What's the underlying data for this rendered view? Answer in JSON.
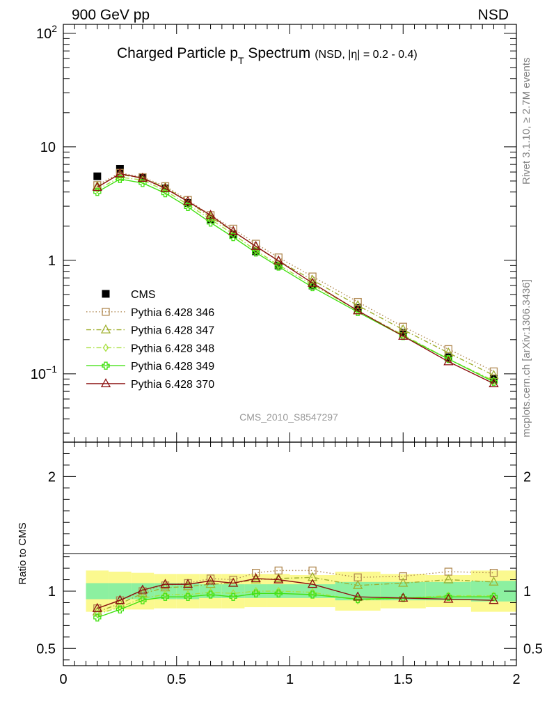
{
  "header": {
    "left": "900 GeV pp",
    "right": "NSD"
  },
  "side": {
    "top": "Rivet 3.1.10, ≥ 2.7M events",
    "bottom": "mcplots.cern.ch [arXiv:1306.3436]"
  },
  "analysis_id": "CMS_2010_S8547297",
  "colors": {
    "cms": "#000000",
    "p346": "#b08850",
    "p347": "#a0b030",
    "p348": "#a8e040",
    "p349": "#40e010",
    "p370": "#8b1010",
    "band_yellow": "#fbf98f",
    "band_green": "#8cf0a0"
  },
  "chart_data": [
    {
      "type": "line",
      "title_main": "Charged Particle p",
      "title_sub": "T",
      "title_main2": " Spectrum",
      "title_small": "(NSD, |η| = 0.2 - 0.4)",
      "yscale": "log",
      "xlim": [
        0,
        2
      ],
      "ylim": [
        0.025,
        120
      ],
      "y_ticks": [
        {
          "v": 0.1,
          "base": "10",
          "exp": "−1"
        },
        {
          "v": 1,
          "base": "1",
          "exp": ""
        },
        {
          "v": 10,
          "base": "10",
          "exp": ""
        },
        {
          "v": 100,
          "base": "10",
          "exp": "2"
        }
      ],
      "legend_position": "lower-left",
      "x": [
        0.15,
        0.25,
        0.35,
        0.45,
        0.55,
        0.65,
        0.75,
        0.85,
        0.95,
        1.1,
        1.3,
        1.5,
        1.7,
        1.9
      ],
      "series": [
        {
          "name": "CMS",
          "key": "cms",
          "marker": "square-filled",
          "style": "none",
          "values": [
            5.5,
            6.4,
            5.4,
            4.3,
            3.2,
            2.3,
            1.7,
            1.2,
            0.9,
            0.6,
            0.38,
            0.23,
            0.14,
            0.09
          ]
        },
        {
          "name": "Pythia 6.428 346",
          "key": "p346",
          "marker": "square-open",
          "style": "dotted",
          "values": [
            4.6,
            5.9,
            5.4,
            4.5,
            3.4,
            2.5,
            1.9,
            1.4,
            1.06,
            0.72,
            0.43,
            0.26,
            0.165,
            0.105
          ]
        },
        {
          "name": "Pythia 6.428 347",
          "key": "p347",
          "marker": "triangle-open",
          "style": "dashdot",
          "values": [
            4.5,
            5.7,
            5.3,
            4.4,
            3.3,
            2.4,
            1.8,
            1.32,
            0.99,
            0.67,
            0.4,
            0.245,
            0.153,
            0.097
          ]
        },
        {
          "name": "Pythia 6.428 348",
          "key": "p348",
          "marker": "diamond-open",
          "style": "dashdot",
          "values": [
            4.2,
            5.4,
            5.1,
            4.1,
            3.1,
            2.3,
            1.7,
            1.22,
            0.91,
            0.61,
            0.36,
            0.22,
            0.135,
            0.087
          ]
        },
        {
          "name": "Pythia 6.428 349",
          "key": "p349",
          "marker": "cross",
          "style": "solid",
          "values": [
            4.0,
            5.2,
            4.8,
            3.9,
            2.95,
            2.15,
            1.6,
            1.17,
            0.88,
            0.58,
            0.35,
            0.215,
            0.135,
            0.085
          ]
        },
        {
          "name": "Pythia 6.428 370",
          "key": "p370",
          "marker": "triangle-open",
          "style": "solid",
          "values": [
            4.4,
            5.8,
            5.3,
            4.3,
            3.3,
            2.5,
            1.8,
            1.33,
            0.99,
            0.63,
            0.36,
            0.215,
            0.128,
            0.082
          ]
        }
      ]
    },
    {
      "type": "line",
      "ylabel": "Ratio to CMS",
      "xlim": [
        0,
        2
      ],
      "ylim": [
        0.35,
        2.3
      ],
      "x_ticks": [
        {
          "v": 0,
          "label": "0"
        },
        {
          "v": 0.5,
          "label": "0.5"
        },
        {
          "v": 1,
          "label": "1"
        },
        {
          "v": 1.5,
          "label": "1.5"
        },
        {
          "v": 2,
          "label": "2"
        }
      ],
      "y_ticks": [
        {
          "v": 0.5,
          "label": "0.5"
        },
        {
          "v": 1,
          "label": "1"
        },
        {
          "v": 2,
          "label": "2"
        }
      ],
      "bin_edges": [
        0.1,
        0.2,
        0.3,
        0.4,
        0.5,
        0.6,
        0.7,
        0.8,
        0.9,
        1.0,
        1.2,
        1.4,
        1.6,
        1.8,
        2.0
      ],
      "band_yellow": [
        [
          0.82,
          1.18
        ],
        [
          0.84,
          1.17
        ],
        [
          0.84,
          1.16
        ],
        [
          0.85,
          1.15
        ],
        [
          0.85,
          1.15
        ],
        [
          0.85,
          1.15
        ],
        [
          0.85,
          1.15
        ],
        [
          0.86,
          1.15
        ],
        [
          0.86,
          1.15
        ],
        [
          0.86,
          1.14
        ],
        [
          0.83,
          1.17
        ],
        [
          0.85,
          1.15
        ],
        [
          0.86,
          1.14
        ],
        [
          0.82,
          1.18
        ]
      ],
      "band_green": [
        [
          0.93,
          1.07
        ],
        [
          0.93,
          1.07
        ],
        [
          0.93,
          1.07
        ],
        [
          0.93,
          1.07
        ],
        [
          0.93,
          1.07
        ],
        [
          0.94,
          1.06
        ],
        [
          0.94,
          1.06
        ],
        [
          0.94,
          1.06
        ],
        [
          0.94,
          1.06
        ],
        [
          0.94,
          1.06
        ],
        [
          0.92,
          1.08
        ],
        [
          0.92,
          1.08
        ],
        [
          0.92,
          1.08
        ],
        [
          0.91,
          1.09
        ]
      ],
      "series": [
        {
          "key": "p346",
          "marker": "square-open",
          "style": "dotted",
          "values": [
            0.85,
            0.92,
            1.0,
            1.05,
            1.07,
            1.11,
            1.1,
            1.16,
            1.18,
            1.18,
            1.12,
            1.13,
            1.17,
            1.16
          ]
        },
        {
          "key": "p347",
          "marker": "triangle-open",
          "style": "dashdot",
          "values": [
            0.82,
            0.89,
            0.98,
            1.03,
            1.04,
            1.06,
            1.07,
            1.1,
            1.11,
            1.12,
            1.05,
            1.07,
            1.1,
            1.08
          ]
        },
        {
          "key": "p348",
          "marker": "diamond-open",
          "style": "dashdot",
          "values": [
            0.8,
            0.86,
            0.94,
            0.97,
            0.97,
            0.99,
            0.98,
            1.0,
            1.0,
            0.99,
            0.92,
            0.94,
            0.96,
            0.96
          ]
        },
        {
          "key": "p349",
          "marker": "cross",
          "style": "solid",
          "values": [
            0.77,
            0.84,
            0.92,
            0.95,
            0.95,
            0.97,
            0.95,
            0.98,
            0.98,
            0.97,
            0.93,
            0.94,
            0.95,
            0.95
          ]
        },
        {
          "key": "p370",
          "marker": "triangle-open",
          "style": "solid",
          "values": [
            0.85,
            0.92,
            1.01,
            1.06,
            1.06,
            1.09,
            1.07,
            1.11,
            1.1,
            1.06,
            0.95,
            0.94,
            0.93,
            0.92
          ]
        }
      ]
    }
  ]
}
